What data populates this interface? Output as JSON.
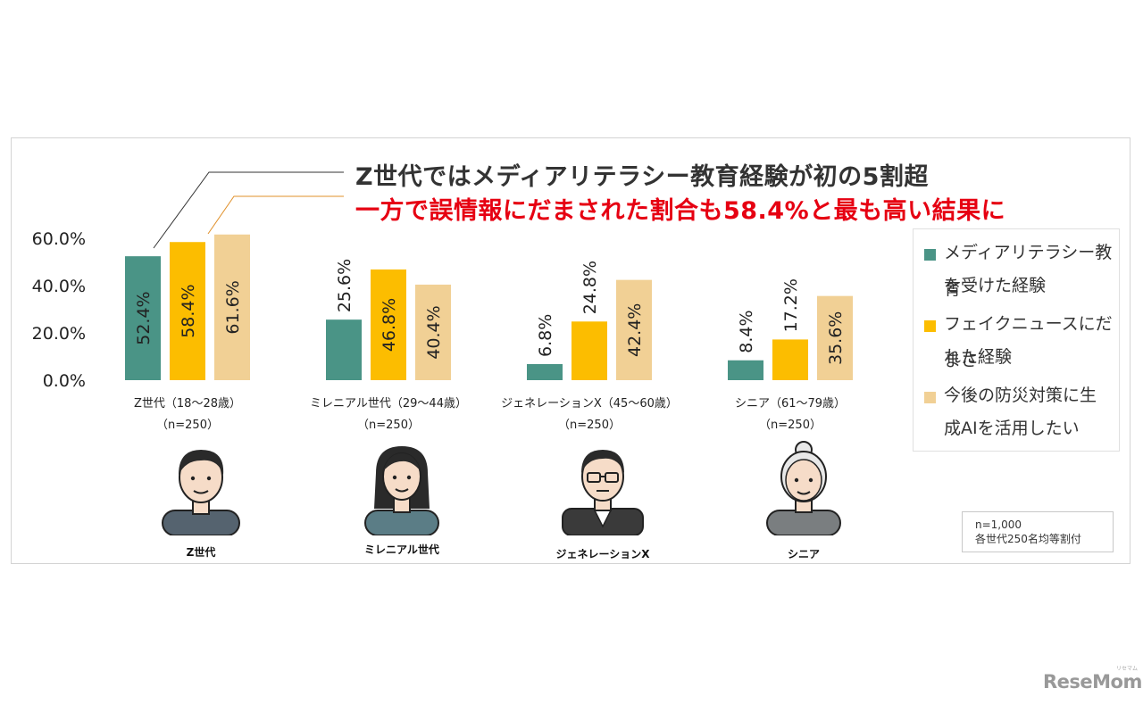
{
  "headline": {
    "line1": "Z世代ではメディアリテラシー教育経験が初の5割超",
    "line2": "一方で誤情報にだまされた割合も58.4%と最も高い結果に"
  },
  "colors": {
    "series1": "#4a9486",
    "series2": "#fcbd00",
    "series3": "#f1d095",
    "highlight": "#e60012",
    "text": "#333333"
  },
  "chart_data": {
    "type": "bar",
    "categories": [
      "Z世代（18～28歳）",
      "ミレニアル世代（29～44歳）",
      "ジェネレーションX（45～60歳）",
      "シニア（61～79歳）"
    ],
    "category_n": [
      "（n=250）",
      "（n=250）",
      "（n=250）",
      "（n=250）"
    ],
    "series": [
      {
        "name": "メディアリテラシー教育を受けた経験",
        "values": [
          52.4,
          25.6,
          6.8,
          8.4
        ],
        "labels": [
          "52.4%",
          "25.6%",
          "6.8%",
          "8.4%"
        ]
      },
      {
        "name": "フェイクニュースにだまされた経験",
        "values": [
          58.4,
          46.8,
          24.8,
          17.2
        ],
        "labels": [
          "58.4%",
          "46.8%",
          "24.8%",
          "17.2%"
        ]
      },
      {
        "name": "今後の防災対策に生成AIを活用したい",
        "values": [
          61.6,
          40.4,
          42.4,
          35.6
        ],
        "labels": [
          "61.6%",
          "40.4%",
          "42.4%",
          "35.6%"
        ]
      }
    ],
    "yticks": [
      "0.0%",
      "20.0%",
      "40.0%",
      "60.0%"
    ],
    "ytick_values": [
      0,
      20,
      40,
      60
    ],
    "ylim": [
      0,
      60
    ],
    "legend_position": "right",
    "grid": false
  },
  "legend": {
    "item1_line1": "メディアリテラシー教育",
    "item1_line2": "を受けた経験",
    "item2_line1": "フェイクニュースにだまさ",
    "item2_line2": "れた経験",
    "item3_line1": "今後の防災対策に生",
    "item3_line2": "成AIを活用したい"
  },
  "persons": [
    {
      "label": "Z世代",
      "icon": "young-man-icon"
    },
    {
      "label": "ミレニアル世代",
      "icon": "woman-icon"
    },
    {
      "label": "ジェネレーションX",
      "icon": "middle-aged-man-icon"
    },
    {
      "label": "シニア",
      "icon": "senior-woman-icon"
    }
  ],
  "note": {
    "line1": "n=1,000",
    "line2": "各世代250名均等割付"
  },
  "watermark": {
    "text": "ReseMom",
    "small": "リセマム"
  }
}
